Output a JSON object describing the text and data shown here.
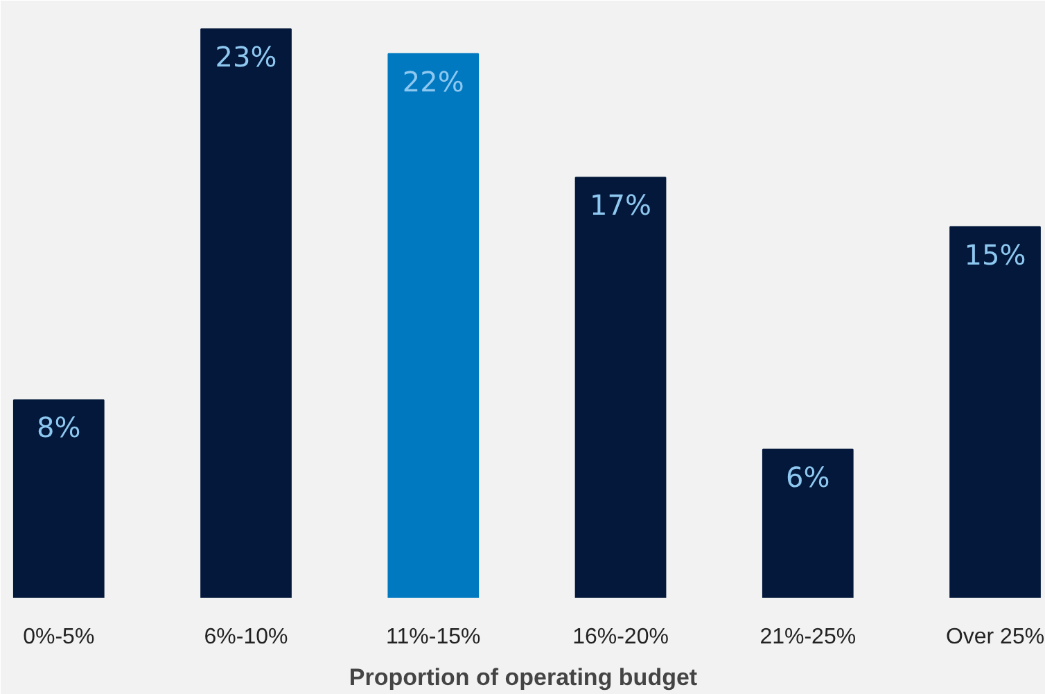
{
  "chart_data": {
    "type": "bar",
    "xlabel": "Proportion of operating budget",
    "categories": [
      "0%-5%",
      "6%-10%",
      "11%-15%",
      "16%-20%",
      "21%-25%",
      "Over 25%"
    ],
    "values": [
      8,
      23,
      22,
      17,
      6,
      15
    ],
    "colors": [
      "#03183a",
      "#03183a",
      "#0079c1",
      "#03183a",
      "#03183a",
      "#03183a"
    ],
    "value_labels": [
      "8%",
      "23%",
      "22%",
      "17%",
      "6%",
      "15%"
    ]
  }
}
